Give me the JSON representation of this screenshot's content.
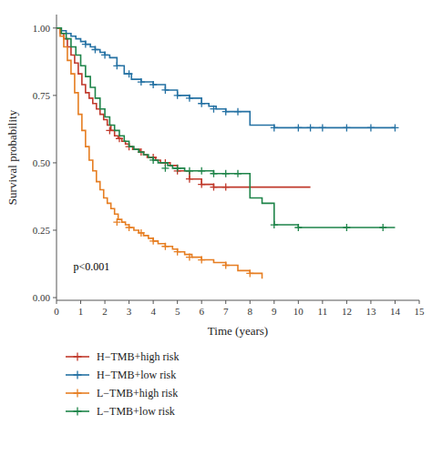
{
  "chart_data": {
    "type": "step",
    "xlabel": "Time (years)",
    "ylabel": "Survival probability",
    "xlim": [
      0,
      15
    ],
    "ylim": [
      -0.01,
      1.05
    ],
    "xticks": [
      0,
      1,
      2,
      3,
      4,
      5,
      6,
      7,
      8,
      9,
      10,
      11,
      12,
      13,
      14,
      15
    ],
    "yticks": [
      {
        "value": 0.0,
        "label": "0.00"
      },
      {
        "value": 0.25,
        "label": "0.25"
      },
      {
        "value": 0.5,
        "label": "0.50"
      },
      {
        "value": 0.75,
        "label": "0.75"
      },
      {
        "value": 1.0,
        "label": "1.00"
      }
    ],
    "grid": false,
    "legend": "bottom",
    "annotations": [
      {
        "text": "p<0.001",
        "x": 0.7,
        "y": 0.1
      }
    ],
    "series": [
      {
        "name": "H−TMB+high risk",
        "color": "#c0392b",
        "line_style": "step",
        "marker": "plus",
        "x": [
          0,
          0.15,
          0.3,
          0.45,
          0.6,
          0.75,
          0.9,
          1.05,
          1.2,
          1.35,
          1.5,
          1.65,
          1.8,
          1.95,
          2.1,
          2.25,
          2.4,
          2.55,
          2.7,
          2.85,
          3.0,
          3.15,
          3.3,
          3.45,
          3.6,
          3.75,
          3.9,
          4.1,
          4.3,
          4.5,
          4.7,
          5.0,
          5.5,
          6.0,
          6.5,
          7.0,
          7.5,
          8.0,
          9.0,
          10.5
        ],
        "values": [
          1.0,
          0.98,
          0.96,
          0.93,
          0.9,
          0.87,
          0.83,
          0.79,
          0.76,
          0.74,
          0.72,
          0.7,
          0.68,
          0.66,
          0.64,
          0.62,
          0.6,
          0.59,
          0.58,
          0.57,
          0.56,
          0.55,
          0.55,
          0.54,
          0.53,
          0.52,
          0.52,
          0.51,
          0.5,
          0.5,
          0.49,
          0.47,
          0.44,
          0.42,
          0.41,
          0.41,
          0.41,
          0.41,
          0.41,
          0.41
        ],
        "censor_x": [
          2.2,
          2.6,
          3.0,
          3.5,
          4.0,
          4.5,
          5.0,
          5.5,
          6.0,
          6.5,
          7.0
        ],
        "censor_values": [
          0.62,
          0.59,
          0.56,
          0.54,
          0.52,
          0.5,
          0.47,
          0.44,
          0.42,
          0.41,
          0.41
        ]
      },
      {
        "name": "H−TMB+low risk",
        "color": "#2471a3",
        "line_style": "step",
        "marker": "plus",
        "x": [
          0,
          0.2,
          0.4,
          0.6,
          0.8,
          1.0,
          1.2,
          1.4,
          1.6,
          1.8,
          2.0,
          2.2,
          2.5,
          2.8,
          3.1,
          3.5,
          4.0,
          4.5,
          5.0,
          5.5,
          6.0,
          6.3,
          6.6,
          7.0,
          7.5,
          8.0,
          9.0,
          10.0,
          10.5,
          11.0,
          12.0,
          13.0,
          14.0
        ],
        "values": [
          1.0,
          0.99,
          0.98,
          0.97,
          0.96,
          0.95,
          0.94,
          0.93,
          0.92,
          0.91,
          0.9,
          0.89,
          0.86,
          0.83,
          0.81,
          0.8,
          0.79,
          0.77,
          0.75,
          0.74,
          0.72,
          0.71,
          0.7,
          0.69,
          0.69,
          0.64,
          0.63,
          0.63,
          0.63,
          0.63,
          0.63,
          0.63,
          0.63
        ],
        "censor_x": [
          1.2,
          1.6,
          2.0,
          2.5,
          3.0,
          3.5,
          4.0,
          4.5,
          5.0,
          5.5,
          6.0,
          6.5,
          7.0,
          7.5,
          9.0,
          10.0,
          10.5,
          11.0,
          12.0,
          13.0,
          14.0
        ],
        "censor_values": [
          0.94,
          0.92,
          0.9,
          0.86,
          0.83,
          0.8,
          0.79,
          0.77,
          0.75,
          0.74,
          0.72,
          0.7,
          0.69,
          0.69,
          0.63,
          0.63,
          0.63,
          0.63,
          0.63,
          0.63,
          0.63
        ]
      },
      {
        "name": "L−TMB+high risk",
        "color": "#e67e22",
        "line_style": "step",
        "marker": "plus",
        "x": [
          0,
          0.15,
          0.3,
          0.45,
          0.6,
          0.75,
          0.9,
          1.05,
          1.2,
          1.35,
          1.5,
          1.65,
          1.8,
          1.95,
          2.1,
          2.25,
          2.4,
          2.55,
          2.7,
          2.85,
          3.0,
          3.2,
          3.4,
          3.6,
          3.8,
          4.0,
          4.2,
          4.5,
          4.8,
          5.0,
          5.3,
          5.6,
          6.0,
          6.5,
          7.0,
          7.5,
          8.0,
          8.5
        ],
        "values": [
          1.0,
          0.97,
          0.93,
          0.88,
          0.83,
          0.76,
          0.68,
          0.62,
          0.56,
          0.51,
          0.47,
          0.43,
          0.4,
          0.37,
          0.35,
          0.33,
          0.31,
          0.29,
          0.28,
          0.27,
          0.26,
          0.25,
          0.24,
          0.23,
          0.22,
          0.21,
          0.2,
          0.19,
          0.18,
          0.17,
          0.16,
          0.15,
          0.14,
          0.13,
          0.12,
          0.1,
          0.09,
          0.07
        ],
        "censor_x": [
          2.5,
          3.0,
          3.5,
          4.0,
          4.5,
          5.0,
          5.5,
          6.0,
          7.0,
          8.0
        ],
        "censor_values": [
          0.28,
          0.26,
          0.24,
          0.21,
          0.19,
          0.17,
          0.15,
          0.14,
          0.12,
          0.09
        ]
      },
      {
        "name": "L−TMB+low risk",
        "color": "#1e8449",
        "line_style": "step",
        "marker": "plus",
        "x": [
          0,
          0.2,
          0.4,
          0.6,
          0.8,
          1.0,
          1.2,
          1.4,
          1.6,
          1.8,
          2.0,
          2.2,
          2.4,
          2.6,
          2.8,
          3.0,
          3.2,
          3.4,
          3.6,
          3.8,
          4.0,
          4.2,
          4.4,
          4.6,
          4.8,
          5.0,
          5.3,
          5.6,
          5.9,
          6.2,
          6.5,
          6.8,
          7.1,
          7.5,
          8.0,
          8.5,
          9.0,
          10.0,
          12.0,
          13.5,
          14.0
        ],
        "values": [
          1.0,
          0.98,
          0.96,
          0.93,
          0.9,
          0.86,
          0.82,
          0.78,
          0.74,
          0.7,
          0.67,
          0.64,
          0.62,
          0.6,
          0.58,
          0.56,
          0.55,
          0.54,
          0.53,
          0.52,
          0.51,
          0.5,
          0.5,
          0.49,
          0.48,
          0.48,
          0.47,
          0.47,
          0.47,
          0.47,
          0.46,
          0.46,
          0.46,
          0.46,
          0.37,
          0.35,
          0.27,
          0.26,
          0.26,
          0.26,
          0.26
        ],
        "censor_x": [
          4.0,
          4.5,
          5.0,
          5.5,
          6.0,
          6.5,
          7.0,
          7.5,
          9.0,
          10.0,
          12.0,
          13.5
        ],
        "censor_values": [
          0.51,
          0.48,
          0.48,
          0.47,
          0.47,
          0.46,
          0.46,
          0.46,
          0.27,
          0.26,
          0.26,
          0.26
        ]
      }
    ]
  }
}
